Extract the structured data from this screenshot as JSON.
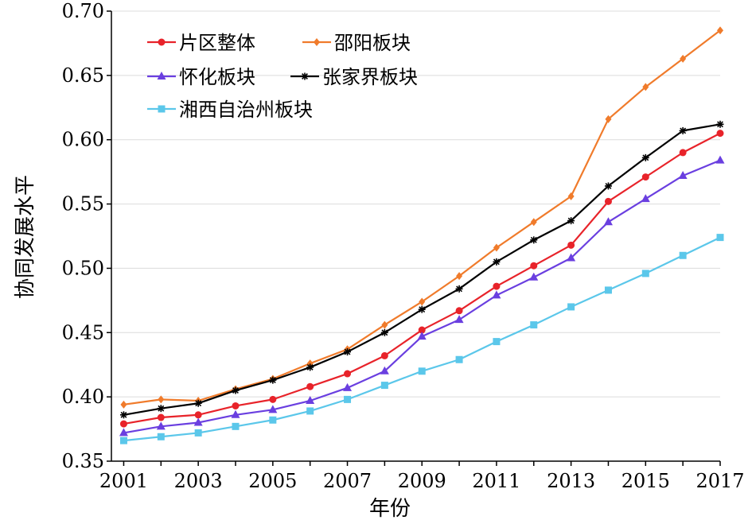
{
  "chart_data": {
    "type": "line",
    "xlabel": "年份",
    "ylabel": "协同发展水平",
    "ylim": [
      0.35,
      0.7
    ],
    "y_ticks": [
      0.35,
      0.4,
      0.45,
      0.5,
      0.55,
      0.6,
      0.65,
      0.7
    ],
    "y_tick_labels": [
      "0.35",
      "0.40",
      "0.45",
      "0.50",
      "0.55",
      "0.60",
      "0.65",
      "0.70"
    ],
    "x": [
      2001,
      2002,
      2003,
      2004,
      2005,
      2006,
      2007,
      2008,
      2009,
      2010,
      2011,
      2012,
      2013,
      2014,
      2015,
      2016,
      2017
    ],
    "x_tick_labels": [
      "2001",
      "2003",
      "2005",
      "2007",
      "2009",
      "2011",
      "2013",
      "2015",
      "2017"
    ],
    "grid": "horizontal",
    "legend_position": "top-left",
    "series": [
      {
        "name": "片区整体",
        "color": "#e8232a",
        "marker": "circle",
        "values": [
          0.379,
          0.384,
          0.386,
          0.393,
          0.398,
          0.408,
          0.418,
          0.432,
          0.452,
          0.467,
          0.486,
          0.502,
          0.518,
          0.552,
          0.571,
          0.59,
          0.605
        ]
      },
      {
        "name": "邵阳板块",
        "color": "#f07b2b",
        "marker": "diamond",
        "values": [
          0.394,
          0.398,
          0.397,
          0.406,
          0.414,
          0.426,
          0.437,
          0.456,
          0.474,
          0.494,
          0.516,
          0.536,
          0.556,
          0.616,
          0.641,
          0.663,
          0.685
        ]
      },
      {
        "name": "怀化板块",
        "color": "#6a3fe0",
        "marker": "triangle",
        "values": [
          0.372,
          0.377,
          0.38,
          0.386,
          0.39,
          0.397,
          0.407,
          0.42,
          0.447,
          0.46,
          0.479,
          0.493,
          0.508,
          0.536,
          0.554,
          0.572,
          0.584
        ]
      },
      {
        "name": "张家界板块",
        "color": "#000000",
        "marker": "star",
        "values": [
          0.386,
          0.391,
          0.395,
          0.405,
          0.413,
          0.423,
          0.435,
          0.45,
          0.468,
          0.484,
          0.505,
          0.522,
          0.537,
          0.564,
          0.586,
          0.607,
          0.612
        ]
      },
      {
        "name": "湘西自治州板块",
        "color": "#5bc7ea",
        "marker": "square",
        "values": [
          0.366,
          0.369,
          0.372,
          0.377,
          0.382,
          0.389,
          0.398,
          0.409,
          0.42,
          0.429,
          0.443,
          0.456,
          0.47,
          0.483,
          0.496,
          0.51,
          0.524
        ]
      }
    ]
  }
}
